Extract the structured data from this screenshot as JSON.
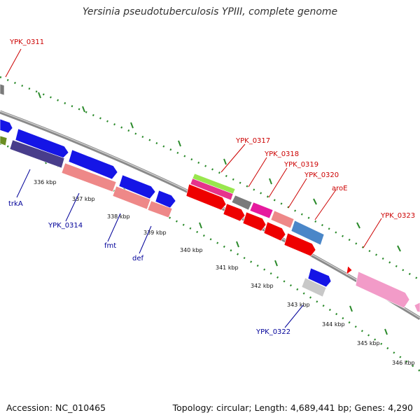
{
  "title": "Yersinia pseudotuberculosis YPIII, complete genome",
  "footer": {
    "accession": "Accession: NC_010465",
    "info": "Topology: circular; Length: 4,689,441 bp; Genes: 4,290"
  },
  "colors": {
    "backbone": "#8a8a8a",
    "tick": "#2a8a2a",
    "label_red": "#cc0000",
    "label_blue": "#000099"
  },
  "ticks": [
    "336 kbp",
    "337 kbp",
    "338 kbp",
    "339 kbp",
    "340 kbp",
    "341 kbp",
    "342 kbp",
    "343 kbp",
    "344 kbp",
    "345 kbp",
    "346 kbp"
  ],
  "labels_forward": [
    "YPK_0311",
    "YPK_0317",
    "YPK_0318",
    "YPK_0319",
    "YPK_0320",
    "aroE",
    "YPK_0323"
  ],
  "labels_reverse": [
    "trkA",
    "YPK_0314",
    "fmt",
    "def",
    "YPK_0322"
  ]
}
